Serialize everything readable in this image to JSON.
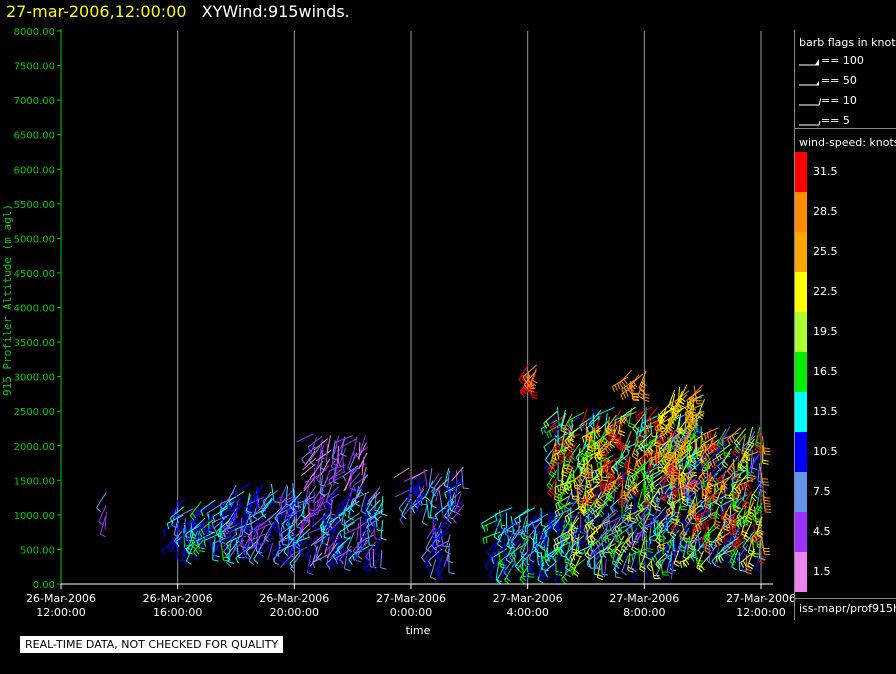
{
  "header": {
    "datetime": "27-mar-2006,12:00:00",
    "title": "XYWind:915winds."
  },
  "chart_data": {
    "type": "scatter",
    "xlabel": "time",
    "ylabel": "915 Profiler Altitude (m agl)",
    "ylim": [
      0,
      8000
    ],
    "y_ticks": [
      "0.00",
      "500.00",
      "1000.00",
      "1500.00",
      "2000.00",
      "2500.00",
      "3000.00",
      "3500.00",
      "4000.00",
      "4500.00",
      "5000.00",
      "5500.00",
      "6000.00",
      "6500.00",
      "7000.00",
      "7500.00",
      "8000.00"
    ],
    "x_ticks": [
      {
        "date": "26-Mar-2006",
        "time": "12:00:00",
        "hour": 0
      },
      {
        "date": "26-Mar-2006",
        "time": "16:00:00",
        "hour": 4
      },
      {
        "date": "26-Mar-2006",
        "time": "20:00:00",
        "hour": 8
      },
      {
        "date": "27-Mar-2006",
        "time": "0:00:00",
        "hour": 12
      },
      {
        "date": "27-Mar-2006",
        "time": "4:00:00",
        "hour": 16
      },
      {
        "date": "27-Mar-2006",
        "time": "8:00:00",
        "hour": 20
      },
      {
        "date": "27-Mar-2006",
        "time": "12:00:00",
        "hour": 24
      }
    ],
    "xlim_hours": [
      0,
      24
    ],
    "grid_x": true,
    "speed_colors": [
      "#ee82ee",
      "#9b30ff",
      "#6495ed",
      "#0000ff",
      "#00ffff",
      "#00ff00",
      "#adff2f",
      "#ffff00",
      "#ffa500",
      "#ff8c00",
      "#ff0000"
    ],
    "clusters": [
      {
        "start": 1.5,
        "end": 1.7,
        "zmin": 1000,
        "zmax": 1300,
        "speeds": [
          4,
          9
        ]
      },
      {
        "start": 4.0,
        "end": 6.0,
        "zmin": 600,
        "zmax": 1250,
        "speeds": [
          7,
          16
        ]
      },
      {
        "start": 6.0,
        "end": 8.0,
        "zmin": 550,
        "zmax": 1450,
        "speeds": [
          3,
          14
        ]
      },
      {
        "start": 8.0,
        "end": 11.0,
        "zmin": 450,
        "zmax": 1450,
        "speeds": [
          2,
          14
        ]
      },
      {
        "start": 8.7,
        "end": 10.5,
        "zmin": 1550,
        "zmax": 2150,
        "speeds": [
          1,
          7
        ]
      },
      {
        "start": 12.0,
        "end": 13.8,
        "zmin": 1150,
        "zmax": 1700,
        "speeds": [
          2,
          14
        ]
      },
      {
        "start": 12.8,
        "end": 13.5,
        "zmin": 350,
        "zmax": 1000,
        "speeds": [
          4,
          12
        ]
      },
      {
        "start": 15.0,
        "end": 17.5,
        "zmin": 300,
        "zmax": 1100,
        "speeds": [
          8,
          18
        ]
      },
      {
        "start": 16.0,
        "end": 16.3,
        "zmin": 2950,
        "zmax": 3200,
        "speeds": [
          28,
          33
        ]
      },
      {
        "start": 17.5,
        "end": 21.0,
        "zmin": 350,
        "zmax": 1400,
        "speeds": [
          4,
          24
        ]
      },
      {
        "start": 17.0,
        "end": 22.0,
        "zmin": 1400,
        "zmax": 2550,
        "speeds": [
          10,
          33
        ]
      },
      {
        "start": 19.5,
        "end": 20.0,
        "zmin": 2900,
        "zmax": 3100,
        "speeds": [
          26,
          30
        ]
      },
      {
        "start": 21.0,
        "end": 24.0,
        "zmin": 450,
        "zmax": 2300,
        "speeds": [
          3,
          33
        ]
      },
      {
        "start": 21.0,
        "end": 22.0,
        "zmin": 2450,
        "zmax": 2900,
        "speeds": [
          20,
          30
        ]
      }
    ]
  },
  "legend": {
    "barb_title": "barb flags in knots",
    "barbs": [
      {
        "label": "== 100",
        "kind": "flag"
      },
      {
        "label": "== 50",
        "kind": "pennant"
      },
      {
        "label": "== 10",
        "kind": "full"
      },
      {
        "label": "== 5",
        "kind": "half"
      }
    ],
    "speed_title": "wind-speed: knots",
    "speed_entries": [
      {
        "label": "31.5",
        "color": "#ff0000"
      },
      {
        "label": "28.5",
        "color": "#ff8c00"
      },
      {
        "label": "25.5",
        "color": "#ffa500"
      },
      {
        "label": "22.5",
        "color": "#ffff00"
      },
      {
        "label": "19.5",
        "color": "#adff2f"
      },
      {
        "label": "16.5",
        "color": "#00ee00"
      },
      {
        "label": "13.5",
        "color": "#00ffff"
      },
      {
        "label": "10.5",
        "color": "#0000ff"
      },
      {
        "label": "7.5",
        "color": "#6495ed"
      },
      {
        "label": "4.5",
        "color": "#9b30ff"
      },
      {
        "label": "1.5",
        "color": "#ee82ee"
      }
    ],
    "source": "iss-mapr/prof915h"
  },
  "footer": {
    "qc_note": "REAL-TIME DATA, NOT CHECKED FOR QUALITY"
  }
}
